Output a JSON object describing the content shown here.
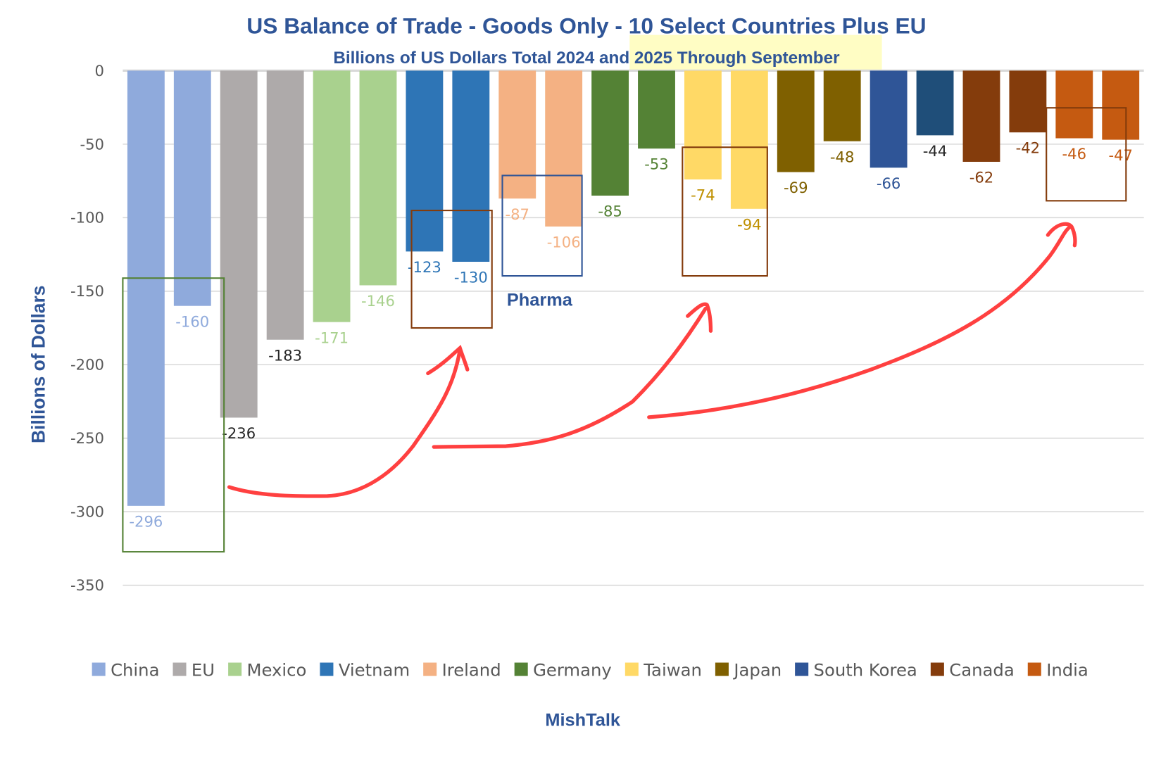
{
  "chart_data": {
    "type": "bar",
    "title": "US Balance of Trade - Goods Only - 10 Select Countries Plus EU",
    "subtitle": "Billions of US Dollars Total 2024 and 2025 Through September",
    "ylabel": "Billions of Dollars",
    "ylim": [
      -350,
      0
    ],
    "yticks": [
      0,
      -50,
      -100,
      -150,
      -200,
      -250,
      -300,
      -350
    ],
    "grid": true,
    "legend_position": "bottom",
    "series": [
      {
        "name": "China",
        "color": "#8FAADC",
        "label_color": "#8FAADC",
        "values": [
          -296,
          -160
        ]
      },
      {
        "name": "EU",
        "color": "#AEAAAA",
        "label_color": "#262626",
        "values": [
          -236,
          -183
        ]
      },
      {
        "name": "Mexico",
        "color": "#A9D18E",
        "label_color": "#A9D18E",
        "values": [
          -171,
          -146
        ]
      },
      {
        "name": "Vietnam",
        "color": "#2E75B6",
        "label_color": "#2E75B6",
        "values": [
          -123,
          -130
        ]
      },
      {
        "name": "Ireland",
        "color": "#F4B183",
        "label_color": "#F4B183",
        "values": [
          -87,
          -106
        ]
      },
      {
        "name": "Germany",
        "color": "#548235",
        "label_color": "#548235",
        "values": [
          -85,
          -53
        ]
      },
      {
        "name": "Taiwan",
        "color": "#FFD966",
        "label_color": "#BF9000",
        "values": [
          -74,
          -94
        ]
      },
      {
        "name": "Japan",
        "color": "#7F6000",
        "label_color": "#7F6000",
        "values": [
          -69,
          -48
        ]
      },
      {
        "name": "South Korea",
        "color": "#2F5597",
        "color2": "#1F4E79",
        "label_color": "#2F5597",
        "label_color2": "#262626",
        "values": [
          -66,
          -44
        ]
      },
      {
        "name": "Canada",
        "color": "#843C0C",
        "label_color": "#843C0C",
        "values": [
          -62,
          -42
        ]
      },
      {
        "name": "India",
        "color": "#C55A11",
        "label_color": "#C55A11",
        "values": [
          -46,
          -47
        ]
      }
    ],
    "annotations": {
      "pharma_label": "Pharma",
      "arrow_color": "#FF4040"
    },
    "footer": "MishTalk"
  }
}
